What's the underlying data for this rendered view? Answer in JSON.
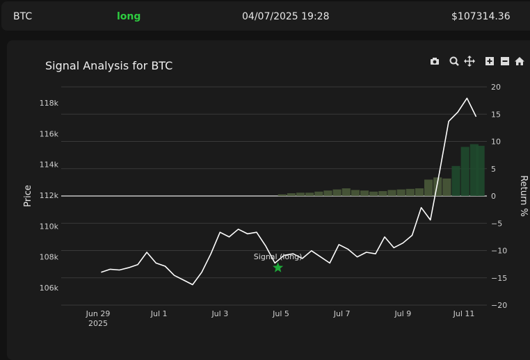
{
  "header": {
    "symbol": "BTC",
    "side": "long",
    "datetime": "04/07/2025 19:28",
    "price": "$107314.36"
  },
  "colors": {
    "side_long": "#2ecc40",
    "price_line": "#ffffff",
    "signal_marker": "#1fa83a",
    "return_bars": "#4a5a3a"
  },
  "toolbar": {
    "icons": [
      "camera-icon",
      "zoom-icon",
      "pan-icon",
      "zoom-in-icon",
      "zoom-out-icon",
      "home-icon"
    ]
  },
  "chart_data": {
    "type": "line",
    "title": "Signal Analysis for BTC",
    "ylabel": "Price",
    "y2label": "Return %",
    "yticks": [
      "106k",
      "108k",
      "110k",
      "112k",
      "114k",
      "116k",
      "118k"
    ],
    "y2ticks": [
      "20",
      "15",
      "10",
      "5",
      "0",
      "−5",
      "−10",
      "−15",
      "−20"
    ],
    "xticks": [
      "Jun 29",
      "Jul 1",
      "Jul 3",
      "Jul 5",
      "Jul 7",
      "Jul 9",
      "Jul 11"
    ],
    "xtick_year": "2025",
    "ylim": [
      105000,
      120000
    ],
    "y2lim": [
      -20,
      20
    ],
    "grid": true,
    "annotation": "Signal (long)",
    "signal_point": {
      "day": 4.9,
      "price": 107300
    },
    "price_series": {
      "day": [
        -0.9,
        -0.6,
        -0.3,
        0.0,
        0.3,
        0.6,
        0.9,
        1.2,
        1.5,
        1.8,
        2.1,
        2.4,
        2.7,
        3.0,
        3.3,
        3.6,
        3.9,
        4.2,
        4.5,
        4.8,
        5.1,
        5.4,
        5.7,
        6.0,
        6.3,
        6.6,
        6.9,
        7.2,
        7.5,
        7.8,
        8.1,
        8.4,
        8.7,
        9.0,
        9.3,
        9.6,
        9.9,
        10.2,
        10.5,
        10.8,
        11.1,
        11.4
      ],
      "price": [
        107000,
        107200,
        107150,
        107300,
        107500,
        108300,
        107600,
        107400,
        106800,
        106500,
        106200,
        107000,
        108200,
        109600,
        109300,
        109800,
        109500,
        109600,
        108700,
        107600,
        108100,
        108200,
        107900,
        108400,
        108000,
        107600,
        108800,
        108500,
        108000,
        108300,
        108200,
        109300,
        108600,
        108900,
        109400,
        111200,
        110400,
        113500,
        116800,
        117400,
        118300,
        117100
      ]
    },
    "return_series": {
      "day": [
        4.9,
        5.2,
        5.5,
        5.8,
        6.1,
        6.4,
        6.7,
        7.0,
        7.3,
        7.6,
        7.9,
        8.2,
        8.5,
        8.8,
        9.1,
        9.4,
        9.7,
        10.0,
        10.3,
        10.6,
        10.9,
        11.2,
        11.4
      ],
      "value": [
        0.3,
        0.5,
        0.6,
        0.6,
        0.8,
        1.0,
        1.2,
        1.4,
        1.1,
        1.0,
        0.8,
        0.9,
        1.1,
        1.2,
        1.3,
        1.4,
        3.0,
        3.4,
        3.2,
        5.5,
        9.0,
        9.5,
        9.2
      ]
    }
  }
}
